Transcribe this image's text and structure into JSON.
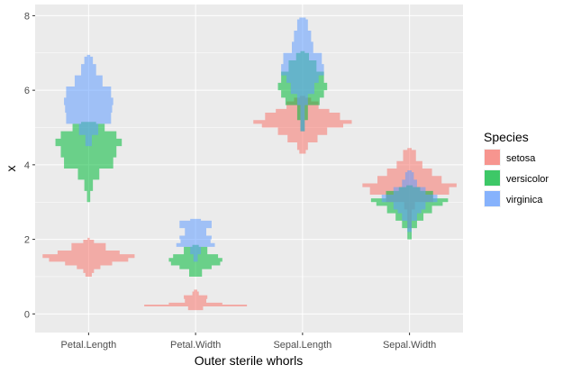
{
  "chart_data": {
    "type": "histogram-violin",
    "title": "",
    "xlabel": "Outer sterile whorls",
    "ylabel": "x",
    "ylim": [
      -0.5,
      8.3
    ],
    "y_ticks": [
      0,
      2,
      4,
      6,
      8
    ],
    "categories": [
      "Petal.Length",
      "Petal.Width",
      "Sepal.Length",
      "Sepal.Width"
    ],
    "grid": true,
    "panel_background": "#ebebeb",
    "grid_color": "#ffffff",
    "legend": {
      "title": "Species",
      "position": "right",
      "entries": [
        "setosa",
        "versicolor",
        "virginica"
      ]
    },
    "colors": {
      "setosa": "#f8766d",
      "versicolor": "#00ba38",
      "virginica": "#619cff"
    },
    "series": [
      {
        "name": "setosa",
        "groups": [
          {
            "category": "Petal.Length",
            "density": [
              [
                1.0,
                0.06
              ],
              [
                1.1,
                0.1
              ],
              [
                1.2,
                0.22
              ],
              [
                1.3,
                0.44
              ],
              [
                1.4,
                0.74
              ],
              [
                1.5,
                0.86
              ],
              [
                1.6,
                0.58
              ],
              [
                1.7,
                0.32
              ],
              [
                1.9,
                0.1
              ],
              [
                1.99,
                0.02
              ]
            ]
          },
          {
            "category": "Petal.Width",
            "density": [
              [
                0.1,
                0.14
              ],
              [
                0.2,
                0.96
              ],
              [
                0.25,
                0.5
              ],
              [
                0.3,
                0.2
              ],
              [
                0.4,
                0.22
              ],
              [
                0.5,
                0.06
              ],
              [
                0.6,
                0.03
              ]
            ]
          },
          {
            "category": "Sepal.Length",
            "density": [
              [
                4.3,
                0.06
              ],
              [
                4.4,
                0.1
              ],
              [
                4.6,
                0.28
              ],
              [
                4.8,
                0.46
              ],
              [
                5.0,
                0.76
              ],
              [
                5.1,
                0.92
              ],
              [
                5.2,
                0.7
              ],
              [
                5.4,
                0.5
              ],
              [
                5.5,
                0.3
              ],
              [
                5.7,
                0.16
              ],
              [
                5.8,
                0.05
              ]
            ]
          },
          {
            "category": "Sepal.Width",
            "density": [
              [
                2.3,
                0.04
              ],
              [
                2.8,
                0.1
              ],
              [
                3.0,
                0.44
              ],
              [
                3.2,
                0.74
              ],
              [
                3.4,
                0.88
              ],
              [
                3.5,
                0.6
              ],
              [
                3.7,
                0.42
              ],
              [
                3.9,
                0.24
              ],
              [
                4.1,
                0.12
              ],
              [
                4.4,
                0.04
              ]
            ]
          }
        ]
      },
      {
        "name": "versicolor",
        "groups": [
          {
            "category": "Petal.Length",
            "density": [
              [
                3.0,
                0.03
              ],
              [
                3.3,
                0.08
              ],
              [
                3.6,
                0.2
              ],
              [
                3.9,
                0.46
              ],
              [
                4.2,
                0.52
              ],
              [
                4.5,
                0.62
              ],
              [
                4.7,
                0.52
              ],
              [
                4.9,
                0.3
              ],
              [
                5.1,
                0.14
              ]
            ]
          },
          {
            "category": "Petal.Width",
            "density": [
              [
                1.0,
                0.12
              ],
              [
                1.2,
                0.3
              ],
              [
                1.3,
                0.46
              ],
              [
                1.4,
                0.5
              ],
              [
                1.5,
                0.42
              ],
              [
                1.6,
                0.22
              ],
              [
                1.8,
                0.06
              ]
            ]
          },
          {
            "category": "Sepal.Length",
            "density": [
              [
                4.9,
                0.04
              ],
              [
                5.2,
                0.1
              ],
              [
                5.6,
                0.32
              ],
              [
                5.8,
                0.4
              ],
              [
                6.0,
                0.46
              ],
              [
                6.2,
                0.4
              ],
              [
                6.5,
                0.26
              ],
              [
                6.8,
                0.12
              ],
              [
                7.0,
                0.04
              ]
            ]
          },
          {
            "category": "Sepal.Width",
            "density": [
              [
                2.0,
                0.04
              ],
              [
                2.3,
                0.14
              ],
              [
                2.5,
                0.26
              ],
              [
                2.7,
                0.42
              ],
              [
                2.9,
                0.62
              ],
              [
                3.0,
                0.72
              ],
              [
                3.1,
                0.44
              ],
              [
                3.3,
                0.2
              ],
              [
                3.4,
                0.06
              ]
            ]
          }
        ]
      },
      {
        "name": "virginica",
        "groups": [
          {
            "category": "Petal.Length",
            "density": [
              [
                4.5,
                0.06
              ],
              [
                4.8,
                0.18
              ],
              [
                5.1,
                0.42
              ],
              [
                5.4,
                0.44
              ],
              [
                5.6,
                0.46
              ],
              [
                5.8,
                0.42
              ],
              [
                6.1,
                0.26
              ],
              [
                6.4,
                0.14
              ],
              [
                6.7,
                0.08
              ],
              [
                6.9,
                0.03
              ]
            ]
          },
          {
            "category": "Petal.Width",
            "density": [
              [
                1.4,
                0.04
              ],
              [
                1.6,
                0.1
              ],
              [
                1.8,
                0.36
              ],
              [
                1.9,
                0.28
              ],
              [
                2.0,
                0.3
              ],
              [
                2.1,
                0.2
              ],
              [
                2.3,
                0.3
              ],
              [
                2.5,
                0.1
              ]
            ]
          },
          {
            "category": "Sepal.Length",
            "density": [
              [
                4.9,
                0.04
              ],
              [
                5.6,
                0.1
              ],
              [
                5.9,
                0.22
              ],
              [
                6.2,
                0.3
              ],
              [
                6.4,
                0.4
              ],
              [
                6.7,
                0.36
              ],
              [
                7.0,
                0.2
              ],
              [
                7.3,
                0.16
              ],
              [
                7.6,
                0.1
              ],
              [
                7.9,
                0.06
              ]
            ]
          },
          {
            "category": "Sepal.Width",
            "density": [
              [
                2.2,
                0.04
              ],
              [
                2.5,
                0.14
              ],
              [
                2.7,
                0.22
              ],
              [
                2.8,
                0.3
              ],
              [
                3.0,
                0.52
              ],
              [
                3.2,
                0.3
              ],
              [
                3.4,
                0.14
              ],
              [
                3.6,
                0.08
              ],
              [
                3.8,
                0.04
              ]
            ]
          }
        ]
      }
    ]
  }
}
